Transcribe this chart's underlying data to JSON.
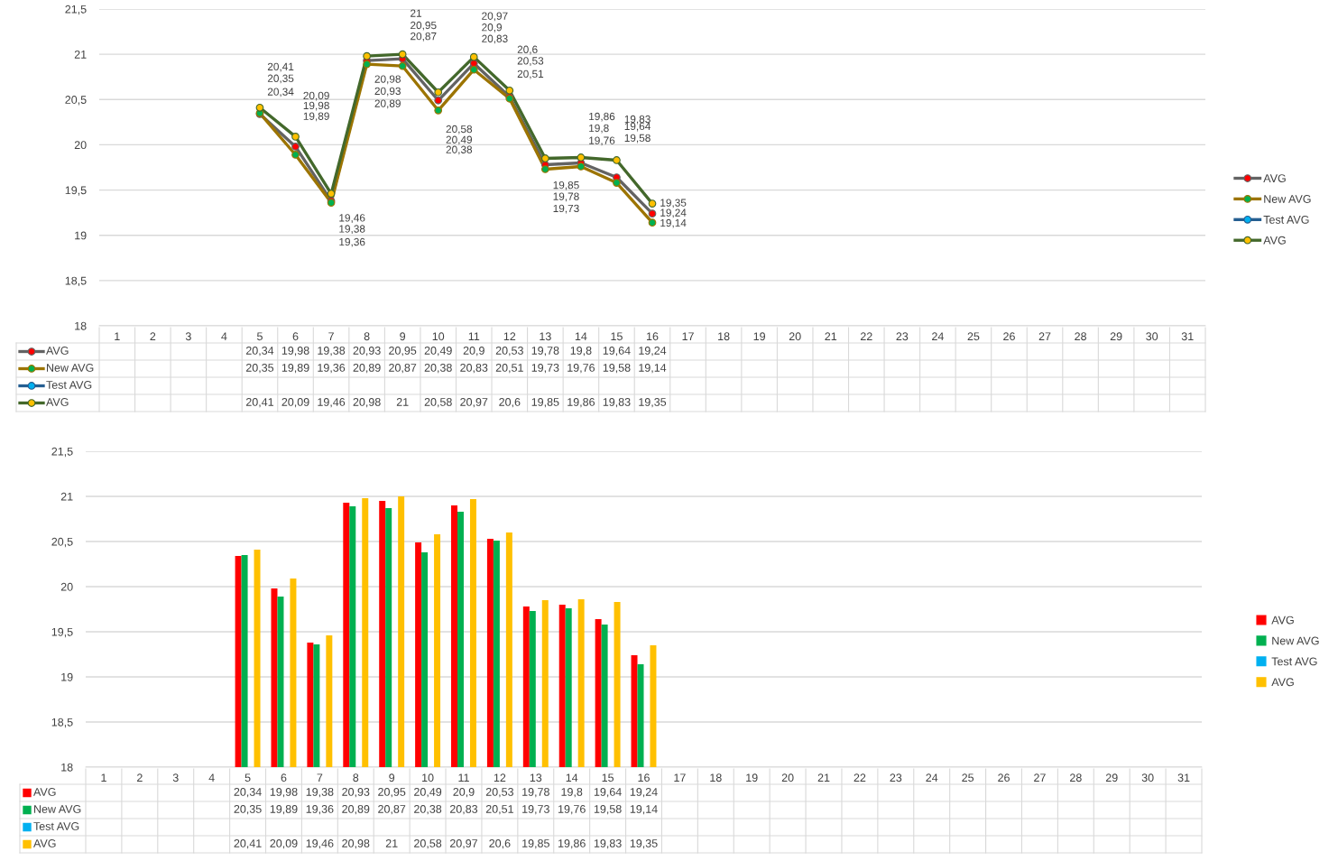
{
  "chart_data": [
    {
      "type": "line",
      "categories": [
        "1",
        "2",
        "3",
        "4",
        "5",
        "6",
        "7",
        "8",
        "9",
        "10",
        "11",
        "12",
        "13",
        "14",
        "15",
        "16",
        "17",
        "18",
        "19",
        "20",
        "21",
        "22",
        "23",
        "24",
        "25",
        "26",
        "27",
        "28",
        "29",
        "30",
        "31"
      ],
      "ylim": [
        18,
        21.5
      ],
      "yticks": [
        18,
        {
          "value": 18.5,
          "label": "18,5"
        },
        19,
        {
          "value": 19.5,
          "label": "19,5"
        },
        20,
        {
          "value": 20.5,
          "label": "20,5"
        },
        21,
        {
          "value": 21.5,
          "label": "21,5"
        }
      ],
      "grid": "y",
      "legend": "right",
      "marker": "circle",
      "series": [
        {
          "name": "AVG",
          "color": "#636363",
          "colors": [
            "#ff0000",
            "#ff0000",
            "#ff0000",
            "#ff0000",
            "#ff0000",
            "#ff0000",
            "#ff0000",
            "#ff0000",
            "#ff0000",
            "#ff0000",
            "#ff0000",
            "#ff0000",
            "#ff0000",
            "#ff0000",
            "#ff0000",
            "#ff0000",
            "#ff0000",
            "#ff0000",
            "#ff0000",
            "#ff0000",
            "#ff0000",
            "#ff0000",
            "#ff0000",
            "#ff0000",
            "#ff0000",
            "#ff0000",
            "#ff0000",
            "#ff0000",
            "#ff0000",
            "#ff0000",
            "#ff0000"
          ],
          "values": [
            null,
            null,
            null,
            null,
            20.34,
            19.98,
            19.38,
            20.93,
            20.95,
            20.49,
            20.9,
            20.53,
            19.78,
            19.8,
            19.64,
            19.24,
            null,
            null,
            null,
            null,
            null,
            null,
            null,
            null,
            null,
            null,
            null,
            null,
            null,
            null,
            null
          ],
          "value_labels": [
            null,
            null,
            null,
            null,
            "20,34",
            "19,98",
            "19,38",
            "20,93",
            "20,95",
            "20,49",
            "20,9",
            "20,53",
            "19,78",
            "19,8",
            "19,64",
            "19,24",
            null,
            null,
            null,
            null,
            null,
            null,
            null,
            null,
            null,
            null,
            null,
            null,
            null,
            null,
            null
          ]
        },
        {
          "name": "New AVG",
          "color": "#9c7400",
          "colors": [
            "#00b050",
            "#00b050",
            "#00b050",
            "#00b050",
            "#00b050",
            "#00b050",
            "#00b050",
            "#00b050",
            "#00b050",
            "#00b050",
            "#00b050",
            "#00b050",
            "#00b050",
            "#00b050",
            "#00b050",
            "#00b050",
            "#00b050",
            "#00b050",
            "#00b050",
            "#00b050",
            "#00b050",
            "#00b050",
            "#00b050",
            "#00b050",
            "#00b050",
            "#00b050",
            "#00b050",
            "#00b050",
            "#00b050",
            "#00b050",
            "#00b050"
          ],
          "values": [
            null,
            null,
            null,
            null,
            20.35,
            19.89,
            19.36,
            20.89,
            20.87,
            20.38,
            20.83,
            20.51,
            19.73,
            19.76,
            19.58,
            19.14,
            null,
            null,
            null,
            null,
            null,
            null,
            null,
            null,
            null,
            null,
            null,
            null,
            null,
            null,
            null
          ],
          "value_labels": [
            null,
            null,
            null,
            null,
            "20,35",
            "19,89",
            "19,36",
            "20,89",
            "20,87",
            "20,38",
            "20,83",
            "20,51",
            "19,73",
            "19,76",
            "19,58",
            "19,14",
            null,
            null,
            null,
            null,
            null,
            null,
            null,
            null,
            null,
            null,
            null,
            null,
            null,
            null,
            null
          ]
        },
        {
          "name": "Test AVG",
          "color": "#255e91",
          "colors": [
            "#00b0f0",
            "#00b0f0",
            "#00b0f0",
            "#00b0f0",
            "#00b0f0",
            "#00b0f0",
            "#00b0f0",
            "#00b0f0",
            "#00b0f0",
            "#00b0f0",
            "#00b0f0",
            "#00b0f0",
            "#00b0f0",
            "#00b0f0",
            "#00b0f0",
            "#00b0f0",
            "#00b0f0",
            "#00b0f0",
            "#00b0f0",
            "#00b0f0",
            "#00b0f0",
            "#00b0f0",
            "#00b0f0",
            "#00b0f0",
            "#00b0f0",
            "#00b0f0",
            "#00b0f0",
            "#00b0f0",
            "#00b0f0",
            "#00b0f0",
            "#00b0f0"
          ],
          "values": [
            null,
            null,
            null,
            null,
            null,
            null,
            null,
            null,
            null,
            null,
            null,
            null,
            null,
            null,
            null,
            null,
            null,
            null,
            null,
            null,
            null,
            null,
            null,
            null,
            null,
            null,
            null,
            null,
            null,
            null,
            null
          ]
        },
        {
          "name": "AVG",
          "color": "#43682b",
          "colors": [
            "#ffc000",
            "#ffc000",
            "#ffc000",
            "#ffc000",
            "#ffc000",
            "#ffc000",
            "#ffc000",
            "#ffc000",
            "#ffc000",
            "#ffc000",
            "#ffc000",
            "#ffc000",
            "#ffc000",
            "#ffc000",
            "#ffc000",
            "#ffc000",
            "#ffc000",
            "#ffc000",
            "#ffc000",
            "#ffc000",
            "#ffc000",
            "#ffc000",
            "#ffc000",
            "#ffc000",
            "#ffc000",
            "#ffc000",
            "#ffc000",
            "#ffc000",
            "#ffc000",
            "#ffc000",
            "#ffc000"
          ],
          "values": [
            null,
            null,
            null,
            null,
            20.41,
            20.09,
            19.46,
            20.98,
            21,
            20.58,
            20.97,
            20.6,
            19.85,
            19.86,
            19.83,
            19.35,
            null,
            null,
            null,
            null,
            null,
            null,
            null,
            null,
            null,
            null,
            null,
            null,
            null,
            null,
            null
          ],
          "value_labels": [
            null,
            null,
            null,
            null,
            "20,41",
            "20,09",
            "19,46",
            "20,98",
            "21",
            "20,58",
            "20,97",
            "20,6",
            "19,85",
            "19,86",
            "19,83",
            "19,35",
            null,
            null,
            null,
            null,
            null,
            null,
            null,
            null,
            null,
            null,
            null,
            null,
            null,
            null,
            null
          ]
        }
      ]
    },
    {
      "type": "bar",
      "categories": [
        "1",
        "2",
        "3",
        "4",
        "5",
        "6",
        "7",
        "8",
        "9",
        "10",
        "11",
        "12",
        "13",
        "14",
        "15",
        "16",
        "17",
        "18",
        "19",
        "20",
        "21",
        "22",
        "23",
        "24",
        "25",
        "26",
        "27",
        "28",
        "29",
        "30",
        "31"
      ],
      "ylim": [
        18,
        21.5
      ],
      "yticks": [
        18,
        {
          "value": 18.5,
          "label": "18,5"
        },
        19,
        {
          "value": 19.5,
          "label": "19,5"
        },
        20,
        {
          "value": 20.5,
          "label": "20,5"
        },
        21,
        {
          "value": 21.5,
          "label": "21,5"
        }
      ],
      "grid": "y",
      "legend": "right",
      "series": [
        {
          "name": "AVG",
          "color": "#ff0000",
          "values": [
            null,
            null,
            null,
            null,
            20.34,
            19.98,
            19.38,
            20.93,
            20.95,
            20.49,
            20.9,
            20.53,
            19.78,
            19.8,
            19.64,
            19.24,
            null,
            null,
            null,
            null,
            null,
            null,
            null,
            null,
            null,
            null,
            null,
            null,
            null,
            null,
            null
          ],
          "value_labels": [
            null,
            null,
            null,
            null,
            "20,34",
            "19,98",
            "19,38",
            "20,93",
            "20,95",
            "20,49",
            "20,9",
            "20,53",
            "19,78",
            "19,8",
            "19,64",
            "19,24",
            null,
            null,
            null,
            null,
            null,
            null,
            null,
            null,
            null,
            null,
            null,
            null,
            null,
            null,
            null
          ]
        },
        {
          "name": "New AVG",
          "color": "#00b050",
          "values": [
            null,
            null,
            null,
            null,
            20.35,
            19.89,
            19.36,
            20.89,
            20.87,
            20.38,
            20.83,
            20.51,
            19.73,
            19.76,
            19.58,
            19.14,
            null,
            null,
            null,
            null,
            null,
            null,
            null,
            null,
            null,
            null,
            null,
            null,
            null,
            null,
            null
          ],
          "value_labels": [
            null,
            null,
            null,
            null,
            "20,35",
            "19,89",
            "19,36",
            "20,89",
            "20,87",
            "20,38",
            "20,83",
            "20,51",
            "19,73",
            "19,76",
            "19,58",
            "19,14",
            null,
            null,
            null,
            null,
            null,
            null,
            null,
            null,
            null,
            null,
            null,
            null,
            null,
            null,
            null
          ]
        },
        {
          "name": "Test AVG",
          "color": "#00b0f0",
          "values": [
            null,
            null,
            null,
            null,
            null,
            null,
            null,
            null,
            null,
            null,
            null,
            null,
            null,
            null,
            null,
            null,
            null,
            null,
            null,
            null,
            null,
            null,
            null,
            null,
            null,
            null,
            null,
            null,
            null,
            null,
            null
          ]
        },
        {
          "name": "AVG",
          "color": "#ffc000",
          "values": [
            null,
            null,
            null,
            null,
            20.41,
            20.09,
            19.46,
            20.98,
            21,
            20.58,
            20.97,
            20.6,
            19.85,
            19.86,
            19.83,
            19.35,
            null,
            null,
            null,
            null,
            null,
            null,
            null,
            null,
            null,
            null,
            null,
            null,
            null,
            null,
            null
          ],
          "value_labels": [
            null,
            null,
            null,
            null,
            "20,41",
            "20,09",
            "19,46",
            "20,98",
            "21",
            "20,58",
            "20,97",
            "20,6",
            "19,85",
            "19,86",
            "19,83",
            "19,35",
            null,
            null,
            null,
            null,
            null,
            null,
            null,
            null,
            null,
            null,
            null,
            null,
            null,
            null,
            null
          ]
        }
      ]
    }
  ]
}
